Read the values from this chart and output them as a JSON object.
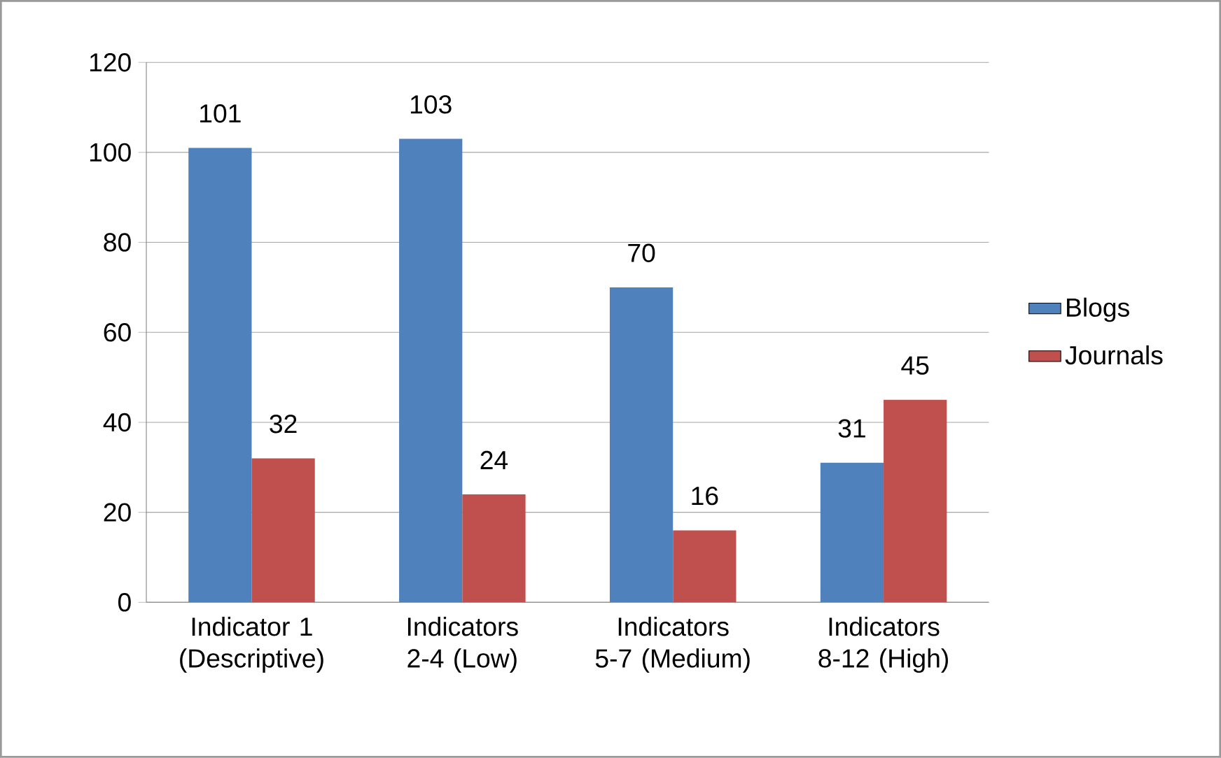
{
  "chart_data": {
    "type": "bar",
    "categories": [
      "Indicator 1 (Descriptive)",
      "Indicators 2-4 (Low)",
      "Indicators 5-7 (Medium)",
      "Indicators 8-12 (High)"
    ],
    "series": [
      {
        "name": "Blogs",
        "color": "#4f81bd",
        "values": [
          101,
          103,
          70,
          31
        ]
      },
      {
        "name": "Journals",
        "color": "#c0504d",
        "values": [
          32,
          24,
          16,
          45
        ]
      }
    ],
    "ylim": [
      0,
      120
    ],
    "yticks": [
      0,
      20,
      40,
      60,
      80,
      100,
      120
    ],
    "grid": "y",
    "legend": "right",
    "data_labels": true
  }
}
